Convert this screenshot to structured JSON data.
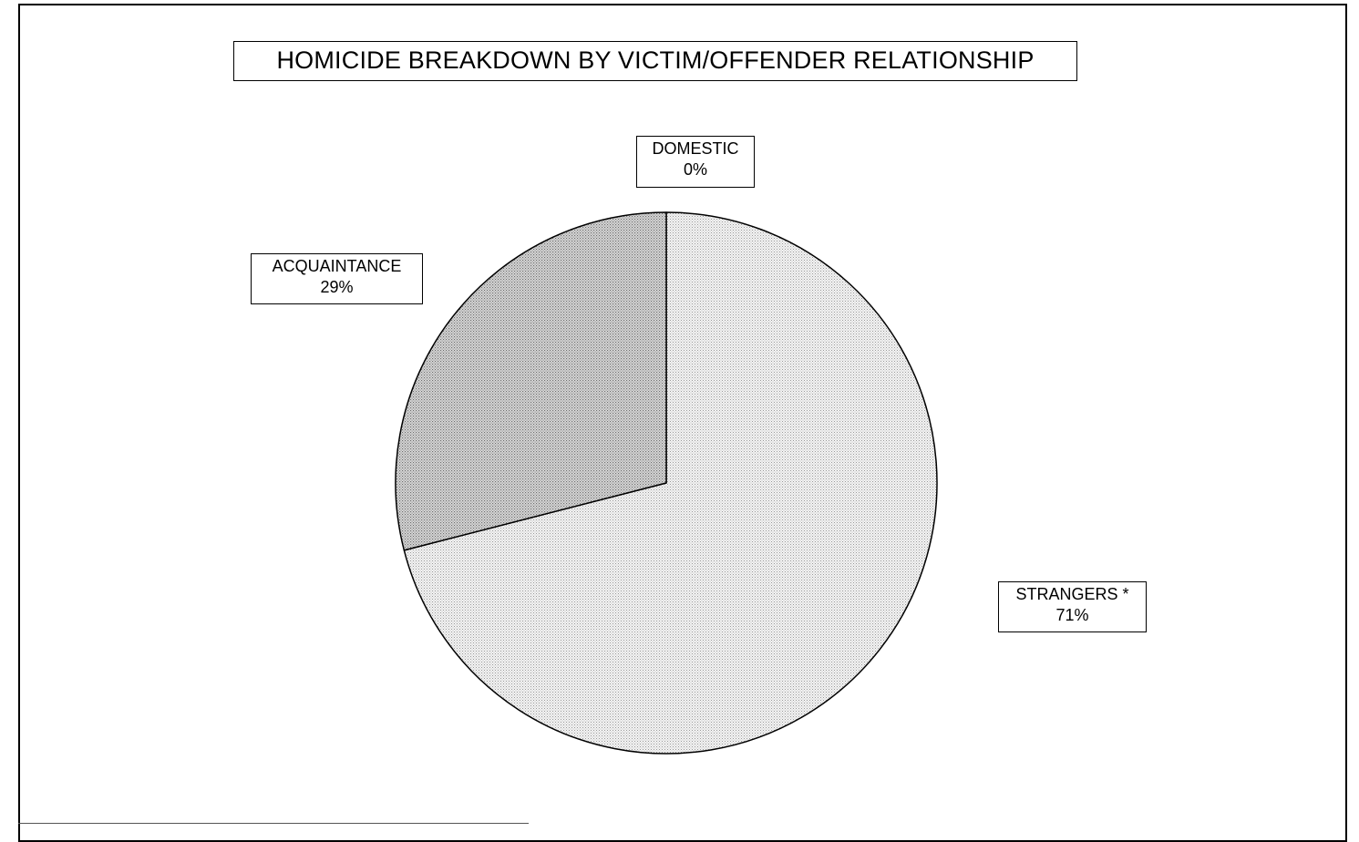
{
  "chart_data": {
    "type": "pie",
    "title": "HOMICIDE BREAKDOWN BY VICTIM/OFFENDER RELATIONSHIP",
    "slices": [
      {
        "label": "DOMESTIC",
        "value": 0,
        "value_label": "0%",
        "fill": "#f2f2f2"
      },
      {
        "label": "STRANGERS *",
        "value": 71,
        "value_label": "71%",
        "fill": "#d9d9d9"
      },
      {
        "label": "ACQUAINTANCE",
        "value": 29,
        "value_label": "29%",
        "fill": "#b8b8b8"
      }
    ],
    "start_angle": "12 o'clock",
    "direction": "clockwise",
    "legend": "none",
    "data_labels": "boxed, outside slices"
  }
}
